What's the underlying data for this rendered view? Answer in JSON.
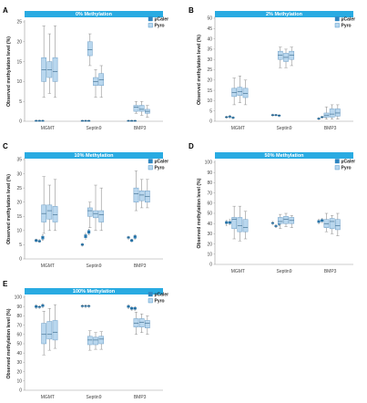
{
  "chart_data": [
    {
      "type": "box",
      "panel_label": "A",
      "title": "0% Methylation",
      "ylabel": "Observed methylation level (%)",
      "ylim": [
        0,
        25
      ],
      "ystep": 5,
      "categories": [
        "MGMT",
        "Septin9",
        "BMP3"
      ],
      "legend": [
        "μCaler",
        "Pyro"
      ],
      "series": [
        {
          "name": "μCaler",
          "groups": [
            [
              [
                0,
                0,
                0.2,
                0.2,
                0.3
              ],
              [
                0,
                0,
                0.2,
                0.2,
                0.3
              ],
              [
                0,
                0,
                0.2,
                0.2,
                0.3
              ]
            ],
            [
              [
                0,
                0,
                0.1,
                0.2,
                0.3
              ],
              [
                0,
                0,
                0.1,
                0.2,
                0.3
              ],
              [
                0,
                0,
                0.1,
                0.2,
                0.3
              ]
            ],
            [
              [
                0,
                0,
                0.1,
                0.2,
                0.3
              ],
              [
                0,
                0,
                0.1,
                0.2,
                0.3
              ],
              [
                0,
                0,
                0.1,
                0.2,
                0.3
              ]
            ]
          ]
        },
        {
          "name": "Pyro",
          "groups": [
            [
              [
                6,
                10,
                13,
                16,
                24
              ],
              [
                7,
                11,
                13,
                15,
                22
              ],
              [
                6,
                10,
                12.5,
                16,
                24
              ]
            ],
            [
              [
                14,
                16.5,
                18,
                20,
                22
              ],
              [
                6,
                9,
                10,
                11,
                13
              ],
              [
                6,
                9,
                10.5,
                12,
                14
              ]
            ],
            [
              [
                2,
                2.5,
                3.5,
                4,
                5
              ],
              [
                1.5,
                2.5,
                3,
                4,
                5
              ],
              [
                1,
                2,
                2.5,
                3,
                4
              ]
            ]
          ]
        }
      ]
    },
    {
      "type": "box",
      "panel_label": "B",
      "title": "2% Methylation",
      "ylabel": "Observed methylation level (%)",
      "ylim": [
        0,
        50
      ],
      "ystep": 5,
      "categories": [
        "MGMT",
        "Septin9",
        "BMP3"
      ],
      "legend": [
        "μCaler",
        "Pyro"
      ],
      "series": [
        {
          "name": "μCaler",
          "groups": [
            [
              [
                1.5,
                1.8,
                2,
                2.2,
                2.5
              ],
              [
                1.5,
                2,
                2.2,
                2.5,
                3
              ],
              [
                1.2,
                1.5,
                1.8,
                2,
                2.2
              ]
            ],
            [
              [
                2.5,
                2.8,
                3,
                3.2,
                3.5
              ],
              [
                2.6,
                2.8,
                3,
                3.2,
                3.4
              ],
              [
                2.2,
                2.5,
                2.8,
                3,
                3.2
              ]
            ],
            [
              [
                0.8,
                1,
                1.3,
                1.5,
                1.8
              ],
              [
                1.5,
                1.8,
                2,
                2.2,
                2.5
              ],
              [
                1.8,
                2,
                2.3,
                2.5,
                3
              ]
            ]
          ]
        },
        {
          "name": "Pyro",
          "groups": [
            [
              [
                8,
                12,
                14,
                16,
                21
              ],
              [
                9,
                12.5,
                14.5,
                16.5,
                22
              ],
              [
                8,
                11.5,
                13.5,
                16,
                20
              ]
            ],
            [
              [
                26,
                30,
                32,
                34,
                36
              ],
              [
                26,
                29,
                31,
                33,
                35
              ],
              [
                27,
                30,
                32,
                34,
                36
              ]
            ],
            [
              [
                1,
                2,
                3,
                4,
                7
              ],
              [
                1,
                2,
                3.5,
                6,
                8
              ],
              [
                1,
                2.5,
                4,
                6,
                8
              ]
            ]
          ]
        }
      ]
    },
    {
      "type": "box",
      "panel_label": "C",
      "title": "10% Methylation",
      "ylabel": "Observed methylation level (%)",
      "ylim": [
        0,
        35
      ],
      "ystep": 5,
      "categories": [
        "MGMT",
        "Septin9",
        "BMP3"
      ],
      "legend": [
        "μCaler",
        "Pyro"
      ],
      "series": [
        {
          "name": "μCaler",
          "groups": [
            [
              [
                6,
                6.2,
                6.5,
                6.8,
                7
              ],
              [
                5.8,
                6,
                6.2,
                6.5,
                6.8
              ],
              [
                6.5,
                7,
                7.5,
                8,
                8.5
              ]
            ],
            [
              [
                4.5,
                4.8,
                5,
                5.3,
                5.5
              ],
              [
                7,
                7.5,
                8,
                8.5,
                9
              ],
              [
                8.5,
                9,
                9.5,
                10,
                10.5
              ]
            ],
            [
              [
                7,
                7.3,
                7.5,
                7.8,
                8
              ],
              [
                6,
                6.2,
                6.5,
                6.8,
                7
              ],
              [
                7,
                7.3,
                7.8,
                8.2,
                8.5
              ]
            ]
          ]
        },
        {
          "name": "Pyro",
          "groups": [
            [
              [
                9,
                13,
                16,
                19,
                29
              ],
              [
                10,
                14,
                17,
                19,
                26
              ],
              [
                10,
                13,
                15.5,
                18.5,
                28
              ]
            ],
            [
              [
                11,
                15,
                17,
                18,
                20
              ],
              [
                10,
                14.5,
                16,
                17,
                26
              ],
              [
                10,
                13,
                15.5,
                17,
                25
              ]
            ],
            [
              [
                17,
                20,
                23,
                25,
                31
              ],
              [
                18,
                20.5,
                22.5,
                24,
                28
              ],
              [
                18,
                20,
                22,
                24,
                28
              ]
            ]
          ]
        }
      ]
    },
    {
      "type": "box",
      "panel_label": "D",
      "title": "50% Methylation",
      "ylabel": "Observed methylation level (%)",
      "ylim": [
        0,
        100
      ],
      "ystep": 10,
      "categories": [
        "MGMT",
        "Septin9",
        "BMP3"
      ],
      "legend": [
        "μCaler",
        "Pyro"
      ],
      "series": [
        {
          "name": "μCaler",
          "groups": [
            [
              [
                38,
                40,
                41,
                42,
                43
              ],
              [
                39,
                40,
                41,
                42,
                44
              ],
              [
                41,
                42,
                43,
                44,
                46
              ]
            ],
            [
              [
                39,
                40,
                40.5,
                41,
                42
              ],
              [
                36,
                37,
                37.5,
                38,
                39
              ],
              [
                38,
                39,
                40,
                41,
                42
              ]
            ],
            [
              [
                40,
                41,
                42,
                43,
                44
              ],
              [
                41,
                42,
                43,
                44,
                45
              ],
              [
                36,
                37,
                38,
                40,
                42
              ]
            ]
          ]
        },
        {
          "name": "Pyro",
          "groups": [
            [
              [
                25,
                35,
                44,
                46,
                57
              ],
              [
                23,
                32,
                38,
                46,
                57
              ],
              [
                25,
                32,
                36,
                44,
                52
              ]
            ],
            [
              [
                35,
                40,
                42,
                46,
                49
              ],
              [
                37,
                40,
                44,
                47,
                50
              ],
              [
                36,
                40,
                43,
                46,
                48
              ]
            ],
            [
              [
                32,
                36,
                40,
                44,
                50
              ],
              [
                30,
                35,
                42,
                45,
                48
              ],
              [
                28,
                34,
                38,
                44,
                50
              ]
            ]
          ]
        }
      ]
    },
    {
      "type": "box",
      "panel_label": "E",
      "title": "100% Methylation",
      "ylabel": "Observed methylation level (%)",
      "ylim": [
        0,
        100
      ],
      "ystep": 10,
      "categories": [
        "MGMT",
        "Septin9",
        "BMP3"
      ],
      "legend": [
        "μCaler",
        "Pyro"
      ],
      "series": [
        {
          "name": "μCaler",
          "groups": [
            [
              [
                88,
                89,
                90,
                91,
                92
              ],
              [
                88,
                89,
                89.5,
                90,
                91
              ],
              [
                89,
                90,
                91,
                92,
                93
              ]
            ],
            [
              [
                89,
                90,
                90.5,
                91,
                92
              ],
              [
                89,
                90,
                90.5,
                91,
                92
              ],
              [
                89,
                90,
                90.5,
                91,
                92
              ]
            ],
            [
              [
                88,
                89,
                90,
                91,
                92
              ],
              [
                86,
                87,
                88,
                89,
                90
              ],
              [
                86,
                87,
                88,
                89,
                90
              ]
            ]
          ]
        },
        {
          "name": "Pyro",
          "groups": [
            [
              [
                38,
                50,
                60,
                72,
                85
              ],
              [
                43,
                55,
                60,
                74,
                88
              ],
              [
                45,
                54,
                62,
                75,
                92
              ]
            ],
            [
              [
                43,
                49,
                54,
                58,
                64
              ],
              [
                44,
                49,
                54,
                57,
                62
              ],
              [
                44,
                50,
                55,
                58,
                63
              ]
            ],
            [
              [
                60,
                68,
                72,
                77,
                84
              ],
              [
                62,
                68,
                73,
                77,
                82
              ],
              [
                60,
                67,
                72,
                75,
                80
              ]
            ]
          ]
        }
      ]
    }
  ]
}
